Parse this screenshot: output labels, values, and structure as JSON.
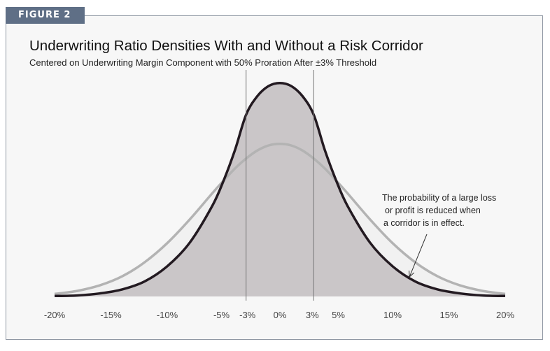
{
  "figure_label": "FIGURE 2",
  "chart_data": {
    "type": "area",
    "title": "Underwriting Ratio Densities With and Without a Risk Corridor",
    "subtitle": "Centered on Underwriting Margin Component with 50% Proration After ±3% Threshold",
    "xlim": [
      -20,
      20
    ],
    "x_ticks": [
      -20,
      -15,
      -10,
      -5,
      -3,
      0,
      3,
      5,
      10,
      15,
      20
    ],
    "x_tick_labels": [
      "-20%",
      "-15%",
      "-10%",
      "-5%",
      "-3%",
      "0%",
      "3%",
      "5%",
      "10%",
      "15%",
      "20%"
    ],
    "threshold_lines": [
      -3,
      3
    ],
    "series": [
      {
        "style": "light gray outline with light fill",
        "color": "#b3b3b3",
        "fill": "#f1f1f1",
        "x": [
          -20,
          -18,
          -16,
          -14,
          -12,
          -10,
          -8,
          -6,
          -5,
          -4,
          -3,
          -2,
          -1,
          0,
          1,
          2,
          3,
          4,
          5,
          6,
          8,
          10,
          12,
          14,
          16,
          18,
          20
        ],
        "values": [
          0.005,
          0.011,
          0.022,
          0.04,
          0.068,
          0.106,
          0.153,
          0.205,
          0.23,
          0.254,
          0.274,
          0.29,
          0.3,
          0.303,
          0.3,
          0.29,
          0.274,
          0.254,
          0.23,
          0.205,
          0.153,
          0.106,
          0.068,
          0.04,
          0.022,
          0.011,
          0.005
        ]
      },
      {
        "style": "dark outline with gray fill",
        "color": "#231a21",
        "fill": "#cac6c8",
        "x": [
          -20,
          -18,
          -16,
          -14,
          -12,
          -10,
          -8,
          -6,
          -5,
          -4,
          -3,
          -2,
          -1,
          0,
          1,
          2,
          3,
          4,
          5,
          6,
          8,
          10,
          12,
          14,
          16,
          18,
          20
        ],
        "values": [
          0.001,
          0.002,
          0.006,
          0.014,
          0.03,
          0.06,
          0.107,
          0.18,
          0.23,
          0.29,
          0.361,
          0.398,
          0.418,
          0.424,
          0.418,
          0.398,
          0.361,
          0.29,
          0.23,
          0.18,
          0.107,
          0.06,
          0.03,
          0.014,
          0.006,
          0.002,
          0.001
        ]
      }
    ],
    "annotation": {
      "lines": [
        "The probability of a large loss",
        "or profit is reduced when",
        "a corridor is in effect."
      ],
      "points_to_x": 11.5
    },
    "grid": false,
    "legend": "none"
  }
}
